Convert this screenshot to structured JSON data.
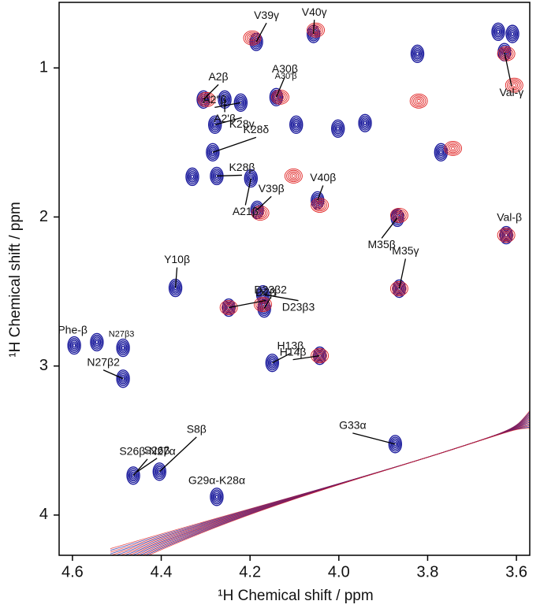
{
  "chart_data": {
    "type": "contour",
    "xlabel": "¹H Chemical shift / ppm",
    "ylabel": "¹H Chemical shift / ppm",
    "xlim": [
      4.63,
      3.57
    ],
    "ylim": [
      0.56,
      4.27
    ],
    "xticks": [
      4.6,
      4.4,
      4.2,
      {
        "value": 4,
        "label": "4.0"
      },
      3.8,
      3.6
    ],
    "yticks": [
      1,
      2,
      3,
      4
    ],
    "series": [
      {
        "color": "#1a1a9c",
        "x": [
          4.186,
          4.057,
          3.627,
          4.141,
          4.305,
          4.257,
          4.221,
          4.279,
          4.284,
          4.198,
          4.275,
          4.184,
          4.048,
          3.868,
          3.623,
          4.368,
          4.248,
          4.171,
          4.168,
          3.864,
          4.596,
          4.486,
          4.486,
          4.15,
          4.043,
          3.873,
          4.463,
          4.404,
          4.275,
          4.002,
          3.941,
          3.77,
          4.096,
          3.641,
          3.609,
          3.823,
          4.545,
          4.33
        ],
        "y": [
          0.825,
          0.772,
          0.894,
          1.196,
          1.212,
          1.212,
          1.233,
          1.381,
          1.566,
          1.741,
          1.725,
          1.952,
          1.889,
          2.005,
          2.122,
          2.476,
          2.608,
          2.519,
          2.614,
          2.481,
          2.862,
          2.878,
          3.085,
          2.979,
          2.931,
          3.524,
          3.735,
          3.709,
          3.878,
          1.407,
          1.37,
          1.566,
          1.381,
          0.757,
          0.772,
          0.905,
          2.84,
          1.73
        ]
      },
      {
        "color": "#e02020",
        "x": [
          4.195,
          4.052,
          3.623,
          4.132,
          4.298,
          4.177,
          4.043,
          3.864,
          3.623,
          3.864,
          4.248,
          4.171,
          3.743,
          3.605,
          3.82,
          4.043,
          4.102
        ],
        "y": [
          0.799,
          0.746,
          0.905,
          1.196,
          1.212,
          1.974,
          1.921,
          1.989,
          2.122,
          2.481,
          2.608,
          2.587,
          1.54,
          1.116,
          1.222,
          2.931,
          1.725
        ]
      }
    ],
    "annotations": [
      {
        "text": "V39γ",
        "x": 4.186,
        "y": 0.825
      },
      {
        "text": "V40γ",
        "x": 4.057,
        "y": 0.772
      },
      {
        "text": "Val-γ",
        "x": 3.627,
        "y": 0.894
      },
      {
        "text": "A30β",
        "x": 4.141,
        "y": 1.196
      },
      {
        "text": "A30'β",
        "x": 4.114,
        "y": 1.18
      },
      {
        "text": "A2β",
        "x": 4.305,
        "y": 1.212
      },
      {
        "text": "A2'β",
        "x": 4.257,
        "y": 1.212
      },
      {
        "text": "A2″β",
        "x": 4.221,
        "y": 1.233
      },
      {
        "text": "K28γ",
        "x": 4.279,
        "y": 1.381
      },
      {
        "text": "K28δ",
        "x": 4.284,
        "y": 1.566
      },
      {
        "text": "A21β",
        "x": 4.198,
        "y": 1.741
      },
      {
        "text": "K28β",
        "x": 4.275,
        "y": 1.725
      },
      {
        "text": "V39β",
        "x": 4.184,
        "y": 1.952
      },
      {
        "text": "V40β",
        "x": 4.048,
        "y": 1.889
      },
      {
        "text": "M35β",
        "x": 3.868,
        "y": 2.005
      },
      {
        "text": "Val-β",
        "x": 3.623,
        "y": 2.122
      },
      {
        "text": "Y10β",
        "x": 4.368,
        "y": 2.476
      },
      {
        "text": "D7β",
        "x": 4.248,
        "y": 2.608
      },
      {
        "text": "D23β3",
        "x": 4.171,
        "y": 2.519
      },
      {
        "text": "D23β2",
        "x": 4.168,
        "y": 2.614
      },
      {
        "text": "M35γ",
        "x": 3.864,
        "y": 2.481
      },
      {
        "text": "Phe-β",
        "x": 4.596,
        "y": 2.862
      },
      {
        "text": "N27β3",
        "x": 4.486,
        "y": 2.878
      },
      {
        "text": "N27β2",
        "x": 4.486,
        "y": 3.085
      },
      {
        "text": "H13β",
        "x": 4.15,
        "y": 2.979
      },
      {
        "text": "H14β",
        "x": 4.043,
        "y": 2.931
      },
      {
        "text": "G33α",
        "x": 3.873,
        "y": 3.524
      },
      {
        "text": "S26β-N27α",
        "x": 4.463,
        "y": 3.735
      },
      {
        "text": "S26β",
        "x": 4.454,
        "y": 3.709
      },
      {
        "text": "S8β",
        "x": 4.404,
        "y": 3.709
      },
      {
        "text": "G29α-K28α",
        "x": 4.275,
        "y": 3.878
      }
    ]
  }
}
